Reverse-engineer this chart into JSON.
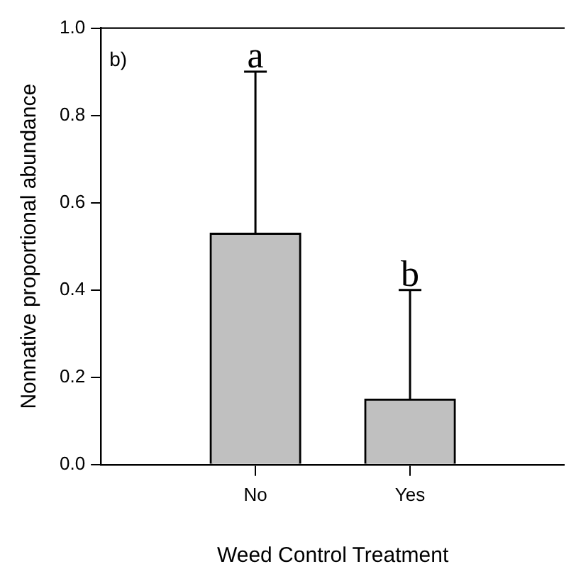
{
  "chart_data": {
    "type": "bar",
    "categories": [
      "No",
      "Yes"
    ],
    "values": [
      0.53,
      0.15
    ],
    "color": "#c0c0c0",
    "errors": [
      [
        0.53,
        0.9
      ],
      [
        0.15,
        0.4
      ]
    ],
    "ylim": [
      0,
      1
    ],
    "yticks": [
      {
        "value": 0,
        "label": "0.0"
      },
      0.2,
      0.4,
      0.6,
      0.8,
      {
        "value": 1,
        "label": "1.0"
      }
    ],
    "xlabel": "Weed Control Treatment",
    "ylabel": "Nonnative proportional abundance",
    "annotations": [
      "b)",
      "a",
      "b"
    ]
  }
}
